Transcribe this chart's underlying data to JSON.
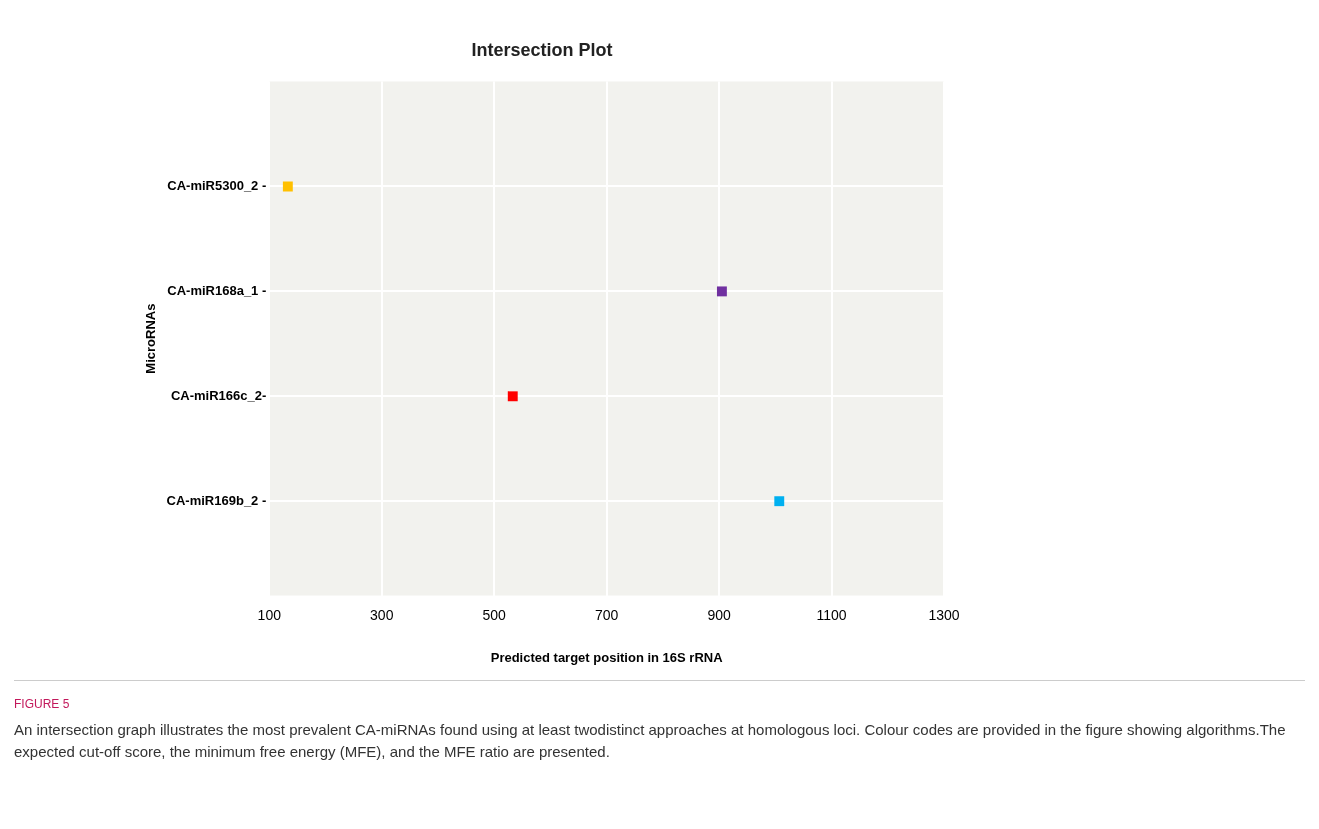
{
  "chart_data": {
    "type": "scatter",
    "orientation": "horizontal",
    "title": "Intersection Plot",
    "xlabel": "Predicted target position in 16S rRNA",
    "ylabel": "MicroRNAs",
    "categories": [
      "CA-miR5300_2 -",
      "CA-miR168a_1 -",
      "CA-miR166c_2-",
      "CA-miR169b_2 -"
    ],
    "values": [
      133,
      905,
      533,
      1007
    ],
    "colors": [
      "#ffc000",
      "#7030a0",
      "#ff0000",
      "#00b0f0"
    ],
    "xlim": [
      100,
      1300
    ],
    "xticks": [
      100,
      300,
      500,
      700,
      900,
      1100,
      1300
    ],
    "grid": true,
    "marker": "square",
    "annotations": [
      "FIGURE 5",
      "An intersection graph illustrates the most prevalent CA-miRNAs found using at least twodistinct approaches at homologous loci. Colour codes are provided in the figure showing algorithms.The expected cut-off score, the minimum free energy (MFE), and the MFE ratio are presented."
    ]
  }
}
